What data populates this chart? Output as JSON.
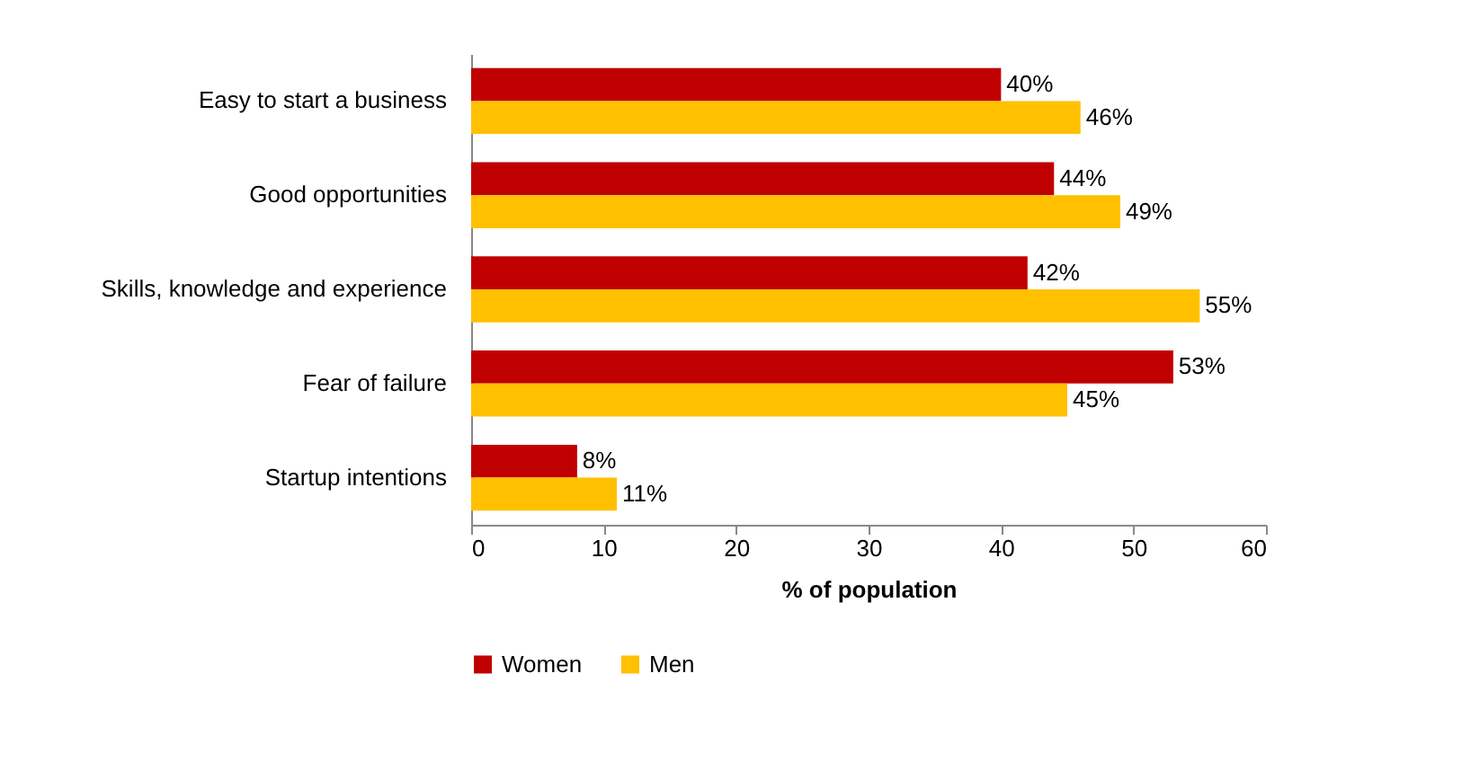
{
  "chart_data": {
    "type": "bar",
    "orientation": "horizontal",
    "xlabel": "% of population",
    "categories": [
      "Easy to start a business",
      "Good opportunities",
      "Skills, knowledge and experience",
      "Fear of failure",
      "Startup intentions"
    ],
    "series": [
      {
        "name": "Women",
        "color": "#c00000",
        "values": [
          40,
          44,
          42,
          53,
          8
        ],
        "value_labels": [
          "40%",
          "44%",
          "42%",
          "53%",
          "8%"
        ]
      },
      {
        "name": "Men",
        "color": "#ffc000",
        "values": [
          46,
          49,
          55,
          45,
          11
        ],
        "value_labels": [
          "46%",
          "49%",
          "55%",
          "45%",
          "11%"
        ]
      }
    ],
    "xlim": [
      0,
      60
    ],
    "xticks": [
      0,
      10,
      20,
      30,
      40,
      50,
      60
    ],
    "legend": "bottom"
  }
}
